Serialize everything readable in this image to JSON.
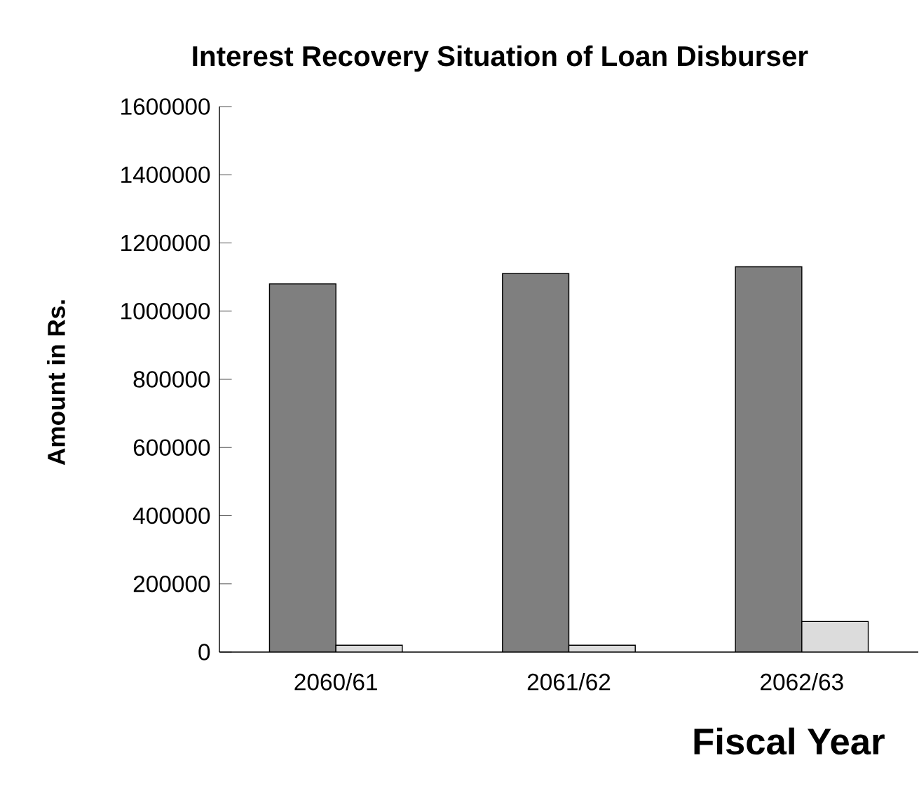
{
  "chart_data": {
    "type": "bar",
    "title": "Interest Recovery Situation of Loan Disburser",
    "xlabel": "Fiscal Year",
    "ylabel": "Amount in Rs.",
    "categories": [
      "2060/61",
      "2061/62",
      "2062/63"
    ],
    "series": [
      {
        "color": "#7f7f7f",
        "values": [
          1080000,
          1110000,
          1130000
        ]
      },
      {
        "color": "#dcdcdc",
        "values": [
          20000,
          20000,
          90000
        ]
      }
    ],
    "ylim": [
      0,
      1600000
    ],
    "yticks": [
      0,
      200000,
      400000,
      600000,
      800000,
      1000000,
      1200000,
      1400000,
      1600000
    ],
    "grid": false
  }
}
